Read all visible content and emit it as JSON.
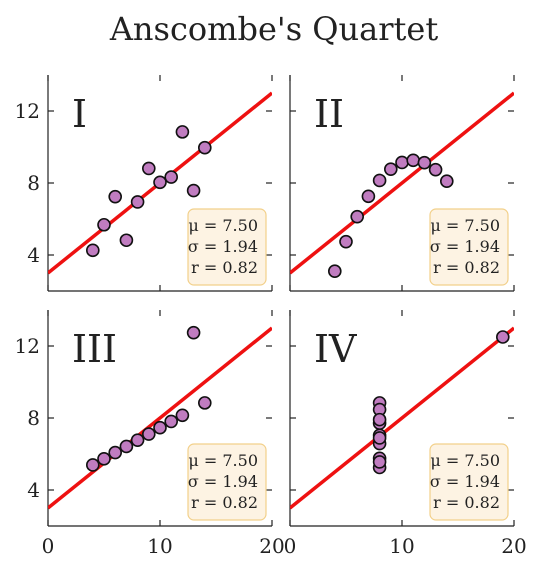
{
  "chart_data": {
    "type": "scatter",
    "title": "Anscombe's Quartet",
    "layout": "2x2 grid, shared axes",
    "xlim": [
      0,
      20
    ],
    "ylim": [
      2,
      14
    ],
    "x_ticks": [
      0,
      10,
      20
    ],
    "x_tick_labels": [
      "0",
      "10",
      "20"
    ],
    "y_ticks": [
      4,
      8,
      12
    ],
    "y_tick_labels": [
      "4",
      "8",
      "12"
    ],
    "fit_line": {
      "intercept": 3.0,
      "slope": 0.5,
      "color": "#ee1111"
    },
    "point_color": "#c07cc0",
    "stats_box_color": "#fdf3e3",
    "panels": [
      {
        "label": "I",
        "x": [
          10,
          8,
          13,
          9,
          11,
          14,
          6,
          4,
          12,
          7,
          5
        ],
        "y": [
          8.04,
          6.95,
          7.58,
          8.81,
          8.33,
          9.96,
          7.24,
          4.26,
          10.84,
          4.82,
          5.68
        ],
        "stats": [
          "μ = 7.50",
          "σ = 1.94",
          "r = 0.82"
        ]
      },
      {
        "label": "II",
        "x": [
          10,
          8,
          13,
          9,
          11,
          14,
          6,
          4,
          12,
          7,
          5
        ],
        "y": [
          9.14,
          8.14,
          8.74,
          8.77,
          9.26,
          8.1,
          6.13,
          3.1,
          9.13,
          7.26,
          4.74
        ],
        "stats": [
          "μ = 7.50",
          "σ = 1.94",
          "r = 0.82"
        ]
      },
      {
        "label": "III",
        "x": [
          10,
          8,
          13,
          9,
          11,
          14,
          6,
          4,
          12,
          7,
          5
        ],
        "y": [
          7.46,
          6.77,
          12.74,
          7.11,
          7.81,
          8.84,
          6.08,
          5.39,
          8.15,
          6.42,
          5.73
        ],
        "stats": [
          "μ = 7.50",
          "σ = 1.94",
          "r = 0.82"
        ]
      },
      {
        "label": "IV",
        "x": [
          8,
          8,
          8,
          8,
          8,
          8,
          8,
          19,
          8,
          8,
          8
        ],
        "y": [
          6.58,
          5.76,
          7.71,
          8.84,
          8.47,
          7.04,
          5.25,
          12.5,
          5.56,
          7.91,
          6.89
        ],
        "stats": [
          "μ = 7.50",
          "σ = 1.94",
          "r = 0.82"
        ]
      }
    ]
  }
}
